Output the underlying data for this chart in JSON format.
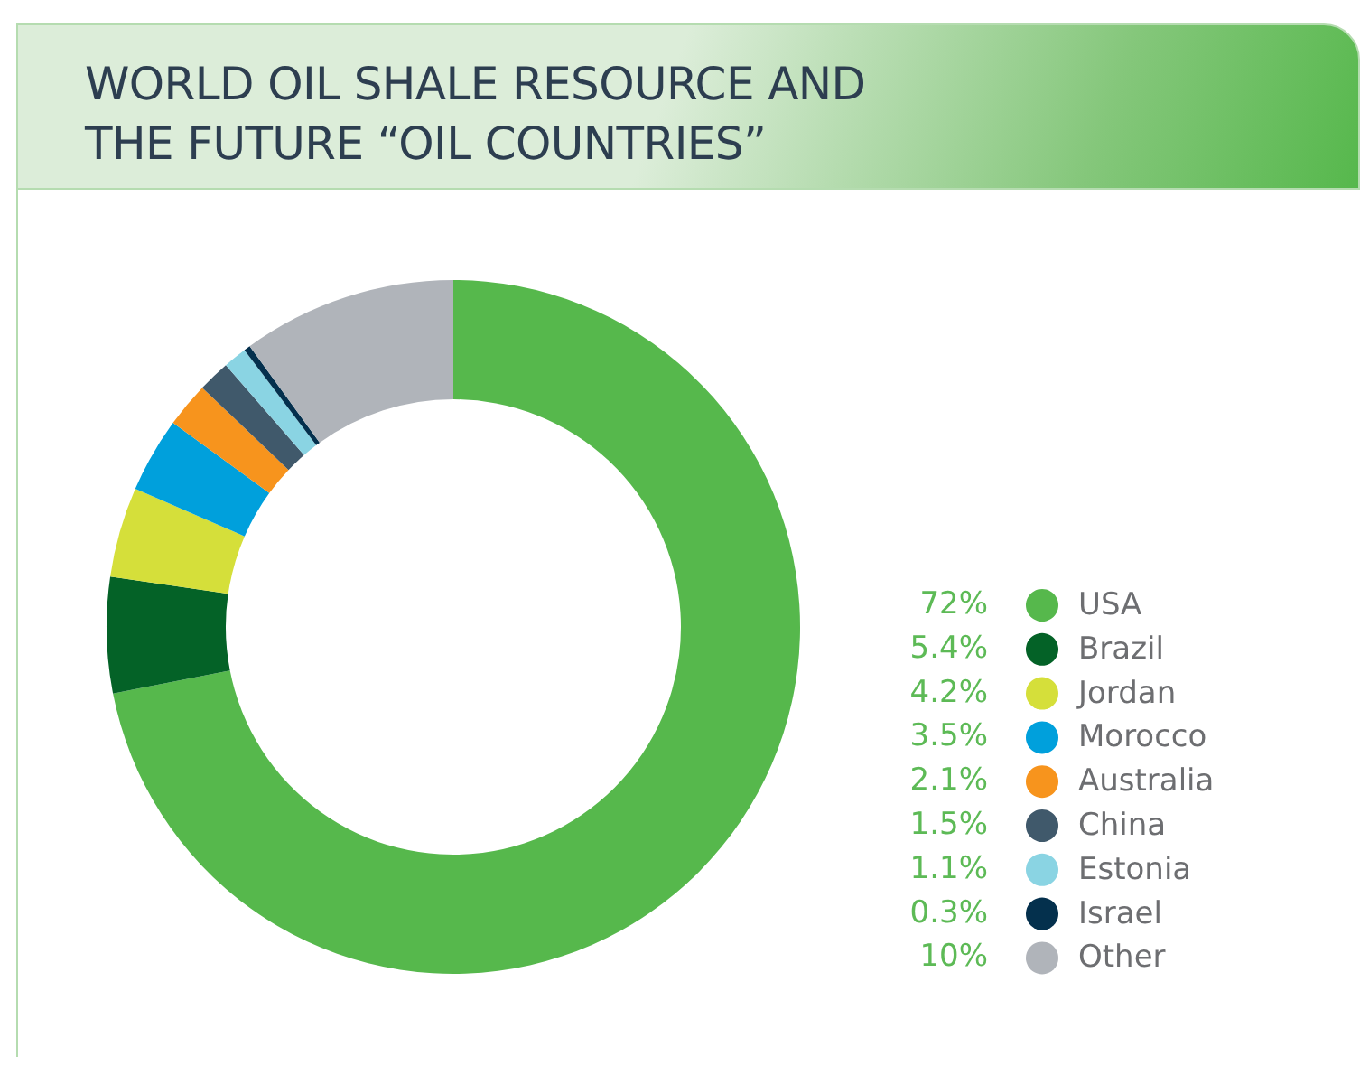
{
  "chart_data": {
    "type": "donut",
    "title": "WORLD OIL SHALE RESOURCE AND\nTHE FUTURE “OIL COUNTRIES”",
    "categories": [
      "USA",
      "Brazil",
      "Jordan",
      "Morocco",
      "Australia",
      "China",
      "Estonia",
      "Israel",
      "Other"
    ],
    "values": [
      72,
      5.4,
      4.2,
      3.5,
      2.1,
      1.5,
      1.1,
      0.3,
      10
    ],
    "value_labels": [
      "72%",
      "5.4%",
      "4.2%",
      "3.5%",
      "2.1%",
      "1.5%",
      "1.1%",
      "0.3%",
      "10%"
    ],
    "colors": [
      "#56b84c",
      "#046227",
      "#d5df3a",
      "#00a0dc",
      "#f7941d",
      "#40596b",
      "#8ad4e3",
      "#04304d",
      "#b0b4ba"
    ],
    "legend": "right"
  }
}
